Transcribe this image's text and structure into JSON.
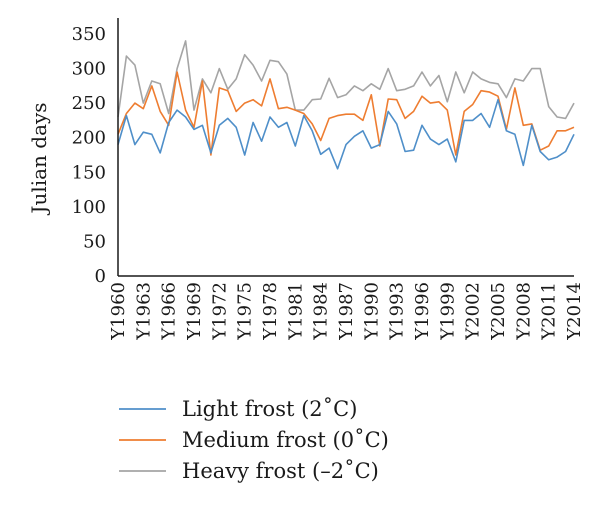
{
  "chart_data": {
    "type": "line",
    "ylabel": "Julian days",
    "ylim": [
      0,
      350
    ],
    "yticks": [
      "0",
      "50",
      "100",
      "150",
      "200",
      "250",
      "300",
      "350"
    ],
    "grid": false,
    "legend_position": "bottom",
    "x_start": 1960,
    "x_end": 2015,
    "x_tick_labels": [
      "Y1960",
      "Y1963",
      "Y1966",
      "Y1969",
      "Y1972",
      "Y1975",
      "Y1978",
      "Y1981",
      "Y1984",
      "Y1987",
      "Y1990",
      "Y1993",
      "Y1996",
      "Y1999",
      "Y2002",
      "Y2005",
      "Y2008",
      "Y2011",
      "Y2014"
    ],
    "series": [
      {
        "name": "Light frost (2˚C)",
        "color": "#4f8fc9",
        "values": [
          190,
          232,
          190,
          208,
          205,
          178,
          222,
          240,
          230,
          212,
          218,
          178,
          218,
          228,
          215,
          175,
          222,
          195,
          230,
          215,
          222,
          188,
          232,
          210,
          176,
          185,
          155,
          190,
          202,
          210,
          185,
          190,
          238,
          220,
          180,
          182,
          218,
          198,
          190,
          198,
          165,
          225,
          225,
          235,
          215,
          255,
          210,
          205,
          160,
          218,
          180,
          168,
          172,
          180,
          205
        ]
      },
      {
        "name": "Medium frost (0˚C)",
        "color": "#ee7d31",
        "values": [
          205,
          235,
          250,
          242,
          275,
          238,
          218,
          295,
          240,
          215,
          282,
          175,
          272,
          268,
          238,
          250,
          255,
          246,
          285,
          242,
          244,
          240,
          235,
          220,
          196,
          228,
          232,
          234,
          234,
          225,
          262,
          188,
          256,
          255,
          228,
          238,
          260,
          250,
          252,
          240,
          175,
          238,
          248,
          268,
          266,
          260,
          212,
          272,
          218,
          220,
          182,
          188,
          210,
          210,
          215
        ]
      },
      {
        "name": "Heavy frost (–2˚C)",
        "color": "#a5a5a5",
        "values": [
          230,
          318,
          305,
          250,
          282,
          278,
          235,
          300,
          340,
          240,
          285,
          265,
          300,
          270,
          285,
          320,
          305,
          282,
          312,
          310,
          292,
          240,
          240,
          255,
          256,
          286,
          258,
          262,
          275,
          268,
          278,
          270,
          300,
          268,
          270,
          275,
          295,
          275,
          290,
          252,
          295,
          265,
          295,
          285,
          280,
          278,
          258,
          285,
          282,
          300,
          300,
          245,
          230,
          228,
          250
        ]
      }
    ]
  }
}
